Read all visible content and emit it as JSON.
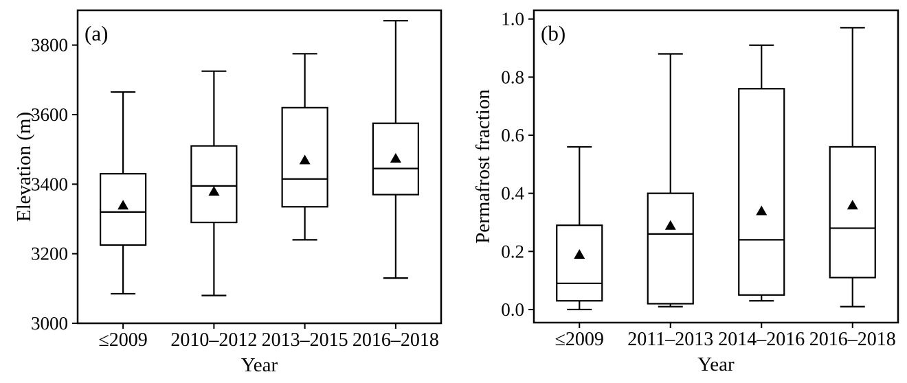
{
  "figure": {
    "background": "#ffffff"
  },
  "colors": {
    "stroke": "#000000",
    "box_fill": "#ffffff",
    "mean_marker_fill": "#000000"
  },
  "marker": {
    "mean_marker": "filled-triangle-up"
  },
  "chart_data": [
    {
      "type": "boxplot",
      "panel_label": "(a)",
      "xlabel": "Year",
      "ylabel": "Elevation (m)",
      "categories": [
        "≤2009",
        "2010–2012",
        "2013–2015",
        "2016–2018"
      ],
      "ylim": [
        3000,
        3900
      ],
      "ytick_values": [
        3000,
        3200,
        3400,
        3600,
        3800
      ],
      "ytick_labels": [
        "3000",
        "3200",
        "3400",
        "3600",
        "3800"
      ],
      "grid": false,
      "legend_position": "none",
      "boxes": [
        {
          "category": "≤2009",
          "whisker_low": 3085,
          "q1": 3225,
          "median": 3320,
          "q3": 3430,
          "whisker_high": 3665,
          "mean": 3340
        },
        {
          "category": "2010–2012",
          "whisker_low": 3080,
          "q1": 3290,
          "median": 3395,
          "q3": 3510,
          "whisker_high": 3725,
          "mean": 3380
        },
        {
          "category": "2013–2015",
          "whisker_low": 3240,
          "q1": 3335,
          "median": 3415,
          "q3": 3620,
          "whisker_high": 3775,
          "mean": 3470
        },
        {
          "category": "2016–2018",
          "whisker_low": 3130,
          "q1": 3370,
          "median": 3445,
          "q3": 3575,
          "whisker_high": 3870,
          "mean": 3475
        }
      ]
    },
    {
      "type": "boxplot",
      "panel_label": "(b)",
      "xlabel": "Year",
      "ylabel": "Permafrost fraction",
      "categories": [
        "≤2009",
        "2011–2013",
        "2014–2016",
        "2016–2018"
      ],
      "ylim": [
        -0.045,
        1.03
      ],
      "ytick_values": [
        0.0,
        0.2,
        0.4,
        0.6,
        0.8,
        1.0
      ],
      "ytick_labels": [
        "0.0",
        "0.2",
        "0.4",
        "0.6",
        "0.8",
        "1.0"
      ],
      "grid": false,
      "legend_position": "none",
      "boxes": [
        {
          "category": "≤2009",
          "whisker_low": 0.0,
          "q1": 0.03,
          "median": 0.09,
          "q3": 0.29,
          "whisker_high": 0.56,
          "mean": 0.19
        },
        {
          "category": "2011–2013",
          "whisker_low": 0.01,
          "q1": 0.02,
          "median": 0.26,
          "q3": 0.4,
          "whisker_high": 0.88,
          "mean": 0.29
        },
        {
          "category": "2014–2016",
          "whisker_low": 0.03,
          "q1": 0.05,
          "median": 0.24,
          "q3": 0.76,
          "whisker_high": 0.91,
          "mean": 0.34
        },
        {
          "category": "2016–2018",
          "whisker_low": 0.01,
          "q1": 0.11,
          "median": 0.28,
          "q3": 0.56,
          "whisker_high": 0.97,
          "mean": 0.36
        }
      ]
    }
  ]
}
